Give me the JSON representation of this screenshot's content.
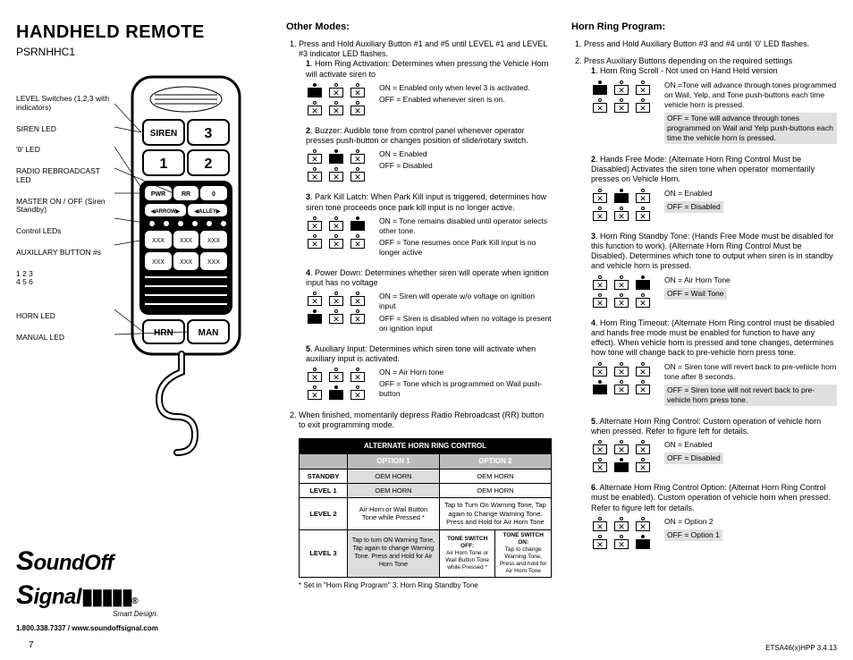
{
  "page": {
    "title": "HANDHELD REMOTE",
    "subtitle": "PSRNHHC1",
    "page_number": "7",
    "footer_code": "ETSA46(x)HPP  3.4.13"
  },
  "logo": {
    "brand": "SoundOff Signal",
    "tagline": "Smart Design.",
    "contact": "1.800.338.7337 / www.soundoffsignal.com"
  },
  "callouts": [
    "LEVEL Switches (1,2,3 with indicators)",
    "SIREN LED",
    "'0' LED",
    "RADIO REBROADCAST LED",
    "MASTER ON / OFF (Siren Standby)",
    "Control LEDs",
    "AUXILLARY BUTTON #s",
    "HORN LED",
    "MANUAL LED"
  ],
  "aux_numbers": {
    "row1": "1    2    3",
    "row2": "4    5    6"
  },
  "other_modes": {
    "heading": "Other Modes:",
    "intro": "Press and Hold Auxiliary Button #1 and #5 until LEVEL #1 and LEVEL #3 indicator LED flashes.",
    "items": [
      {
        "n": "1",
        "title": "Horn Ring Activation: Determines when pressing the Vehicle Horn will activate siren to",
        "on": "ON = Enabled only when level 3 is activated.",
        "off": "OFF = Enabled whenever siren is on.",
        "sw_top": [
          0,
          1,
          1
        ],
        "sw_bot": [
          1,
          1,
          1
        ]
      },
      {
        "n": "2",
        "title": "Buzzer: Audible tone from control panel whenever operator presses push-button or changes position of slide/rotary switch.",
        "on": "ON = Enabled",
        "off": "OFF = Disabled",
        "sw_top": [
          1,
          0,
          1
        ],
        "sw_bot": [
          1,
          1,
          1
        ]
      },
      {
        "n": "3",
        "title": "Park Kill Latch: When Park Kill input is triggered, determines how siren tone proceeds once park kill input is no longer active.",
        "on": "ON = Tone remains disabled until operator selects other tone.",
        "off": "OFF = Tone resumes once Park Kill input is no longer active",
        "sw_top": [
          1,
          1,
          0
        ],
        "sw_bot": [
          1,
          1,
          1
        ]
      },
      {
        "n": "4",
        "title": "Power Down: Determines whether siren will operate when ignition input has no voltage",
        "on": "ON = Siren will operate w/o voltage on ignition input",
        "off": "OFF = Siren is disabled when no voltage is present on ignition input",
        "sw_top": [
          1,
          1,
          1
        ],
        "sw_bot": [
          0,
          1,
          1
        ]
      },
      {
        "n": "5",
        "title": "Auxiliary Input: Determines which siren tone will activate when auxiliary input is activated.",
        "on": "ON = Air Horn tone",
        "off": "OFF = Tone which is programmed on Wail push-button",
        "sw_top": [
          1,
          1,
          1
        ],
        "sw_bot": [
          1,
          0,
          1
        ]
      }
    ],
    "exit": "When finished, momentarily depress Radio Rebroadcast (RR) button to exit programming mode.",
    "table": {
      "title": "ALTERNATE HORN RING CONTROL",
      "col1": "OPTION 1",
      "col2": "OPTION 2",
      "rows": [
        {
          "label": "STANDBY",
          "c1": "OEM HORN",
          "c2": "OEM HORN",
          "shade": [
            1,
            0
          ]
        },
        {
          "label": "LEVEL 1",
          "c1": "OEM HORN",
          "c2": "OEM HORN",
          "shade": [
            1,
            0
          ]
        },
        {
          "label": "LEVEL 2",
          "c1": "Air Horn or Wail Button Tone while Pressed *",
          "c2": "Tap to Turn On Warning Tone, Tap again to Change Warning Tone. Press and Hold for Air Horn Tone",
          "shade": [
            0,
            0
          ]
        },
        {
          "label": "LEVEL 3",
          "c1": "Tap to turn ON Warning Tone, Tap again to change Warning Tone. Press and Hold for Air Horn Tone",
          "c2a_h": "TONE SWITCH OFF:",
          "c2a": "Air Horn Tone or Wail Button Tone while Pressed *",
          "c2b_h": "TONE SWITCH ON:",
          "c2b": "Tap to change Warning Tone, Press and hold for Air Horn Tone",
          "split": true,
          "shade": [
            1,
            0
          ]
        }
      ],
      "note": "* Set in \"Horn Ring Program\"  3. Horn Ring Standby Tone"
    }
  },
  "horn_ring": {
    "heading": "Horn Ring Program:",
    "intro": "Press and Hold Auxiliary Button #3 and #4 until '0' LED flashes.",
    "intro2": "Press Auxiliary Buttons depending on the required settings",
    "items": [
      {
        "n": "1",
        "title": "Horn Ring Scroll - Not used on Hand Held version",
        "on": "ON =Tone will advance through tones programmed on Wail, Yelp, and Tone push-buttons each time vehicle horn is pressed.",
        "off": "OFF = Tone will advance through tones programmed on Wail and Yelp push-buttons each time the vehicle horn is pressed.",
        "off_boxed": true,
        "sw_top": [
          0,
          1,
          1
        ],
        "sw_bot": [
          1,
          1,
          1
        ]
      },
      {
        "n": "2",
        "title": "Hands Free Mode: (Alternate Horn Ring Control Must be Diasabled) Activates the siren tone when operator momentarily presses on Vehicle Horn.",
        "on": "ON = Enabled",
        "off": "OFF = Disabled",
        "off_boxed": true,
        "sw_top": [
          1,
          0,
          1
        ],
        "sw_bot": [
          1,
          1,
          1
        ]
      },
      {
        "n": "3",
        "title": "Horn Ring Standby Tone: (Hands Free Mode must be disabled for this function to work).  (Alternate Horn Ring Control Must be Disabled).  Determines which tone to output when siren is in standby and vehicle horn is pressed.",
        "on": "ON = Air Horn Tone",
        "off": "OFF = Wail Tone",
        "off_boxed": true,
        "sw_top": [
          1,
          1,
          0
        ],
        "sw_bot": [
          1,
          1,
          1
        ]
      },
      {
        "n": "4",
        "title": "Horn Ring Timeout: (Alternate Horn Ring control must be disabled and hands free mode must be enabled for function to have any effect).  When vehicle horn is pressed and tone changes, determines how tone will change back to pre-vehicle horn press tone.",
        "on": "ON = Siren tone will revert back to pre-vehicle horn tone after 8 seconds.",
        "off": "OFF = Siren tone will not revert back to pre-vehicle horn press tone.",
        "off_boxed": true,
        "sw_top": [
          1,
          1,
          1
        ],
        "sw_bot": [
          0,
          1,
          1
        ]
      },
      {
        "n": "5",
        "title": "Alternate Horn Ring Control: Custom operation of vehicle horn when pressed.  Refer to figure left for details.",
        "on": "ON = Enabled",
        "off": "OFF = Disabled",
        "off_boxed": true,
        "sw_top": [
          1,
          1,
          1
        ],
        "sw_bot": [
          1,
          0,
          1
        ]
      },
      {
        "n": "6",
        "title": "Alternate Horn Ring Control Option: (Alternat Horn Ring Control must be enabled). Custom operation of vehicle horn when pressed. Refer to figure left for details.",
        "on": "ON = Option 2",
        "off": "OFF = Option 1",
        "off_boxed": true,
        "sw_top": [
          1,
          1,
          1
        ],
        "sw_bot": [
          1,
          1,
          0
        ]
      }
    ]
  },
  "style": {
    "text_color": "#000000",
    "background": "#ffffff",
    "table_header_bg": "#000000",
    "table_sub_bg": "#bbbbbb",
    "shaded_cell": "#dddddd",
    "boxed_bg": "#e0e0e0"
  }
}
